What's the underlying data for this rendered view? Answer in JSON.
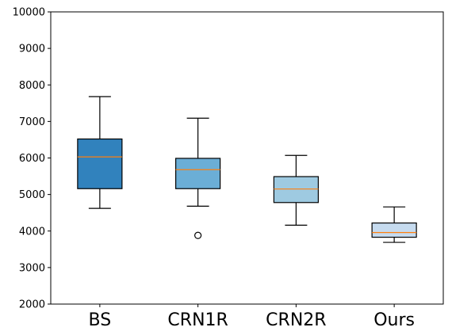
{
  "chart_data": {
    "type": "boxplot",
    "title": "",
    "xlabel": "",
    "ylabel": "",
    "ylim": [
      2000,
      10000
    ],
    "yticks": [
      2000,
      3000,
      4000,
      5000,
      6000,
      7000,
      8000,
      9000,
      10000
    ],
    "grid": false,
    "categories": [
      "BS",
      "CRN1R",
      "CRN2R",
      "Ours"
    ],
    "boxes": [
      {
        "whisker_low": 4620,
        "q1": 5160,
        "median": 6030,
        "q3": 6520,
        "whisker_high": 7680,
        "outliers": [],
        "color": "#3182bd"
      },
      {
        "whisker_low": 4680,
        "q1": 5160,
        "median": 5680,
        "q3": 5990,
        "whisker_high": 7090,
        "outliers": [
          3880
        ],
        "color": "#6baed6"
      },
      {
        "whisker_low": 4160,
        "q1": 4780,
        "median": 5150,
        "q3": 5490,
        "whisker_high": 6070,
        "outliers": [],
        "color": "#9ecae1"
      },
      {
        "whisker_low": 3690,
        "q1": 3830,
        "median": 3960,
        "q3": 4220,
        "whisker_high": 4660,
        "outliers": [],
        "color": "#c6dbef"
      }
    ],
    "median_color": "#ff7f0e"
  }
}
